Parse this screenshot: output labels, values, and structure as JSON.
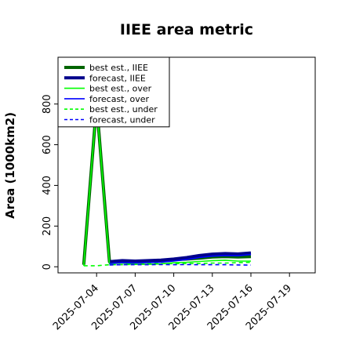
{
  "colors": {
    "best_iiee": "#006400",
    "forecast_iiee": "#00008b",
    "best_over": "#00ff00",
    "forecast_over": "#0000ff",
    "best_under": "#00ff00",
    "forecast_under": "#0000ff",
    "highlight_tick": "#228b22"
  },
  "chart_data": {
    "type": "line",
    "title": "IIEE area metric",
    "xlabel": "",
    "ylabel": "Area (1000km2)",
    "x_axis": {
      "type": "date",
      "range": [
        "2025-07-01",
        "2025-07-21"
      ],
      "ticks": [
        "2025-07-04",
        "2025-07-07",
        "2025-07-10",
        "2025-07-13",
        "2025-07-16",
        "2025-07-19"
      ],
      "highlighted_tick": "2025-07-10"
    },
    "y_axis": {
      "range": [
        -30,
        1030
      ],
      "ticks": [
        0,
        200,
        400,
        600,
        800
      ]
    },
    "grid": false,
    "legend": {
      "position": "top-left"
    },
    "x": [
      "2025-07-03",
      "2025-07-04",
      "2025-07-05",
      "2025-07-06",
      "2025-07-07",
      "2025-07-08",
      "2025-07-09",
      "2025-07-10",
      "2025-07-11",
      "2025-07-12",
      "2025-07-13",
      "2025-07-14",
      "2025-07-15",
      "2025-07-16"
    ],
    "series": [
      {
        "name": "best est., IIEE",
        "style": "solid-thick",
        "color_key": "best_iiee",
        "values": [
          10,
          800,
          25,
          28,
          25,
          27,
          30,
          35,
          38,
          42,
          48,
          50,
          48,
          50
        ]
      },
      {
        "name": "forecast, IIEE",
        "style": "solid-thick",
        "color_key": "forecast_iiee",
        "values": [
          null,
          null,
          25,
          30,
          28,
          30,
          33,
          38,
          45,
          55,
          62,
          65,
          63,
          68
        ]
      },
      {
        "name": "best est., over",
        "style": "solid",
        "color_key": "best_over",
        "values": [
          5,
          800,
          15,
          18,
          12,
          12,
          14,
          20,
          22,
          26,
          30,
          32,
          28,
          28
        ]
      },
      {
        "name": "forecast, over",
        "style": "solid",
        "color_key": "forecast_over",
        "values": [
          null,
          null,
          16,
          20,
          18,
          20,
          22,
          28,
          35,
          45,
          52,
          55,
          54,
          60
        ]
      },
      {
        "name": "best est., under",
        "style": "dashed",
        "color_key": "best_under",
        "values": [
          5,
          5,
          10,
          10,
          12,
          15,
          16,
          15,
          16,
          16,
          18,
          18,
          20,
          22
        ]
      },
      {
        "name": "forecast, under",
        "style": "dashed",
        "color_key": "forecast_under",
        "values": [
          null,
          null,
          9,
          10,
          10,
          10,
          11,
          10,
          11,
          10,
          10,
          10,
          9,
          8
        ]
      }
    ]
  }
}
